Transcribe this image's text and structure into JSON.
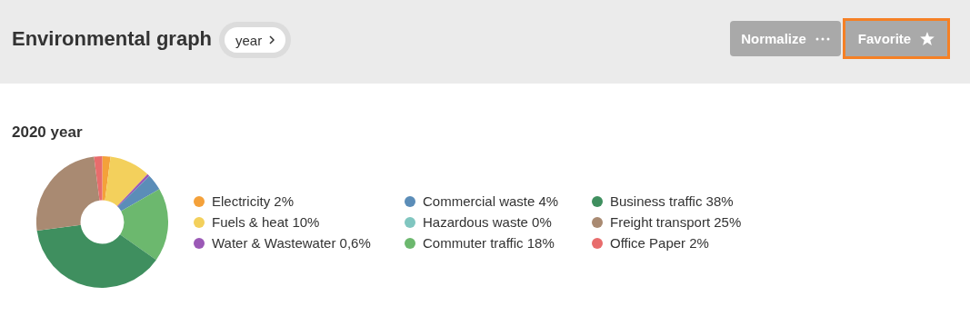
{
  "chart_data": {
    "type": "donut",
    "title": "Environmental graph",
    "subtitle": "2020 year",
    "annotations": [
      "year",
      "Normalize",
      "Favorite"
    ],
    "categories": [
      "Electricity",
      "Fuels & heat",
      "Water & Wastewater",
      "Commercial waste",
      "Hazardous waste",
      "Commuter traffic",
      "Business traffic",
      "Freight transport",
      "Office Paper"
    ],
    "values": [
      2,
      10,
      0.6,
      4,
      0,
      18,
      38,
      25,
      2
    ],
    "value_labels": [
      "2%",
      "10%",
      "0,6%",
      "4%",
      "0%",
      "18%",
      "38%",
      "25%",
      "2%"
    ],
    "colors": [
      "#f4a13a",
      "#f3d05c",
      "#9b59b6",
      "#5b8db8",
      "#80c6c0",
      "#6cb86e",
      "#3f8f5f",
      "#a98a72",
      "#e86c6c"
    ],
    "legend": "right"
  }
}
